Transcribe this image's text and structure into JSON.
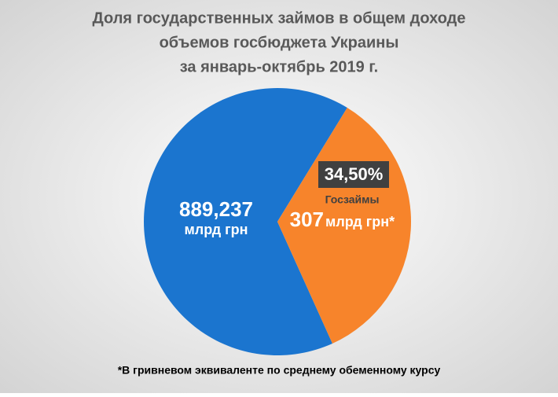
{
  "chart_data": {
    "type": "pie",
    "title": [
      "Доля государственных займов в общем доходе",
      "объемов госбюджета Украины",
      "за январь-октябрь 2019 г."
    ],
    "categories": [
      null,
      "Госзаймы"
    ],
    "values": [
      65.5,
      34.5
    ],
    "value_labels": [
      null,
      "34,50%"
    ],
    "amount_labels": [
      "889,237",
      "307"
    ],
    "unit_labels": [
      "млрд грн",
      "млрд грн*"
    ],
    "colors": [
      "#1b75cf",
      "#f7842b"
    ],
    "footnote": "*В гривневом эквиваленте по среднему обеменному курсу"
  }
}
